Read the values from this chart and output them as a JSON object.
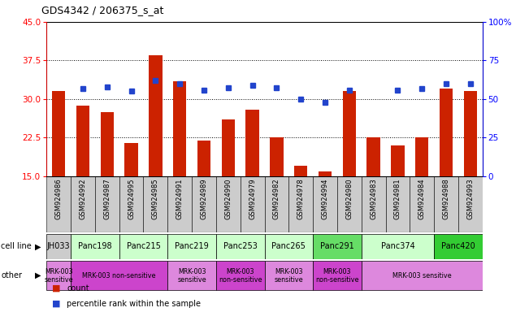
{
  "title": "GDS4342 / 206375_s_at",
  "samples": [
    "GSM924986",
    "GSM924992",
    "GSM924987",
    "GSM924995",
    "GSM924985",
    "GSM924991",
    "GSM924989",
    "GSM924990",
    "GSM924979",
    "GSM924982",
    "GSM924978",
    "GSM924994",
    "GSM924980",
    "GSM924983",
    "GSM924981",
    "GSM924984",
    "GSM924988",
    "GSM924993"
  ],
  "bar_values": [
    31.5,
    28.8,
    27.5,
    21.5,
    38.5,
    33.5,
    22.0,
    26.0,
    28.0,
    22.5,
    17.0,
    16.0,
    31.5,
    22.5,
    21.0,
    22.5,
    32.0,
    31.5
  ],
  "blue_pct": [
    null,
    57.0,
    58.0,
    55.0,
    62.0,
    60.0,
    56.0,
    57.5,
    59.0,
    57.5,
    50.0,
    48.0,
    56.0,
    null,
    55.5,
    57.0,
    60.0,
    60.0
  ],
  "yleft_min": 15,
  "yleft_max": 45,
  "yright_min": 0,
  "yright_max": 100,
  "yticks_left": [
    15,
    22.5,
    30,
    37.5,
    45
  ],
  "yticks_right": [
    0,
    25,
    50,
    75,
    100
  ],
  "bar_color": "#cc2200",
  "blue_color": "#2244cc",
  "tick_bg_color": "#cccccc",
  "cell_lines": [
    {
      "label": "JH033",
      "s": 0,
      "e": 1,
      "color": "#cccccc"
    },
    {
      "label": "Panc198",
      "s": 1,
      "e": 3,
      "color": "#ccffcc"
    },
    {
      "label": "Panc215",
      "s": 3,
      "e": 5,
      "color": "#ccffcc"
    },
    {
      "label": "Panc219",
      "s": 5,
      "e": 7,
      "color": "#ccffcc"
    },
    {
      "label": "Panc253",
      "s": 7,
      "e": 9,
      "color": "#ccffcc"
    },
    {
      "label": "Panc265",
      "s": 9,
      "e": 11,
      "color": "#ccffcc"
    },
    {
      "label": "Panc291",
      "s": 11,
      "e": 13,
      "color": "#66dd66"
    },
    {
      "label": "Panc374",
      "s": 13,
      "e": 16,
      "color": "#ccffcc"
    },
    {
      "label": "Panc420",
      "s": 16,
      "e": 18,
      "color": "#33cc33"
    }
  ],
  "other_rows": [
    {
      "label": "MRK-003\nsensitive",
      "s": 0,
      "e": 1,
      "color": "#dd88dd"
    },
    {
      "label": "MRK-003 non-sensitive",
      "s": 1,
      "e": 5,
      "color": "#cc44cc"
    },
    {
      "label": "MRK-003\nsensitive",
      "s": 5,
      "e": 7,
      "color": "#dd88dd"
    },
    {
      "label": "MRK-003\nnon-sensitive",
      "s": 7,
      "e": 9,
      "color": "#cc44cc"
    },
    {
      "label": "MRK-003\nsensitive",
      "s": 9,
      "e": 11,
      "color": "#dd88dd"
    },
    {
      "label": "MRK-003\nnon-sensitive",
      "s": 11,
      "e": 13,
      "color": "#cc44cc"
    },
    {
      "label": "MRK-003 sensitive",
      "s": 13,
      "e": 18,
      "color": "#dd88dd"
    }
  ],
  "lm": 0.088,
  "rm": 0.912,
  "chart_b": 0.435,
  "chart_t": 0.93,
  "xtick_b": 0.255,
  "cell_b": 0.168,
  "cell_t": 0.252,
  "other_b": 0.068,
  "other_t": 0.165,
  "legend_b": 0.005
}
